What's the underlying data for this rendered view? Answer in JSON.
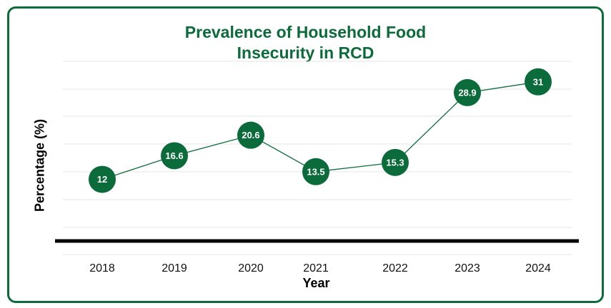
{
  "colors": {
    "accent": "#0b6b3a",
    "line": "#0b6b3a",
    "marker": "#0b6b3a",
    "marker_text": "#ffffff",
    "baseline": "#000000",
    "grid": "#e6e6e6"
  },
  "chart_data": {
    "type": "line",
    "title": "Prevalence of Household Food Insecurity in RCD",
    "title_lines": [
      "Prevalence of Household Food",
      "Insecurity in RCD"
    ],
    "xlabel": "Year",
    "ylabel": "Percentage (%)",
    "categories": [
      "2018",
      "2019",
      "2020",
      "2021",
      "2022",
      "2023",
      "2024"
    ],
    "values": [
      12,
      16.6,
      20.6,
      13.5,
      15.3,
      28.9,
      31
    ],
    "data_labels": [
      "12",
      "16.6",
      "20.6",
      "13.5",
      "15.3",
      "28.9",
      "31"
    ],
    "grid": true,
    "legend": "none"
  }
}
